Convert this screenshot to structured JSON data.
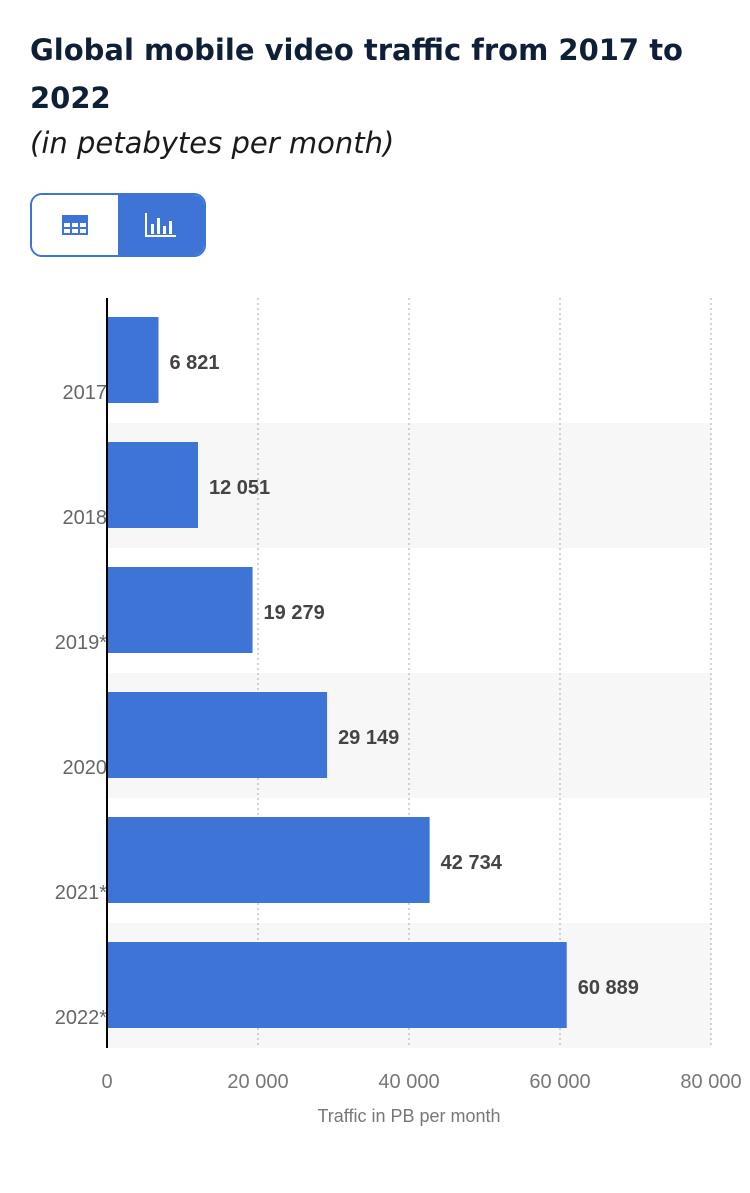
{
  "header": {
    "title": "Global mobile video traffic from 2017 to 2022",
    "subtitle": "(in petabytes per month)"
  },
  "view_toggle": {
    "options": [
      {
        "name": "table-view",
        "icon": "table-icon",
        "active": false
      },
      {
        "name": "chart-view",
        "icon": "bar-chart-icon",
        "active": true
      }
    ]
  },
  "colors": {
    "bar": "#3d74d6",
    "accent": "#3d74d6",
    "band": "#f7f7f7"
  },
  "chart_data": {
    "type": "bar",
    "orientation": "horizontal",
    "categories": [
      "2017",
      "2018",
      "2019*",
      "2020",
      "2021*",
      "2022*"
    ],
    "values": [
      6821,
      12051,
      19279,
      29149,
      42734,
      60889
    ],
    "value_labels": [
      "6 821",
      "12 051",
      "19 279",
      "29 149",
      "42 734",
      "60 889"
    ],
    "xlabel": "Traffic in PB per month",
    "ylabel": "",
    "xlim": [
      0,
      80000
    ],
    "ticks": [
      0,
      20000,
      40000,
      60000,
      80000
    ],
    "tick_labels": [
      "0",
      "20 000",
      "40 000",
      "60 000",
      "80 000"
    ],
    "grid": true
  }
}
